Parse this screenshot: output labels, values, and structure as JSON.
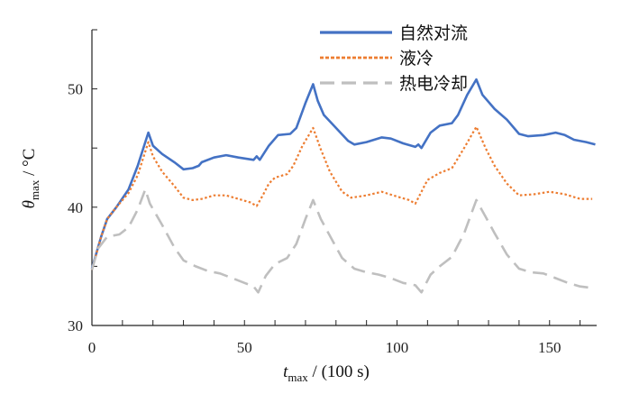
{
  "chart_data": {
    "type": "line",
    "xlabel": {
      "main": "t",
      "sub": "max",
      "rest": " / (100 s)"
    },
    "ylabel": {
      "main": "θ",
      "sub": "max",
      "rest": " / °C"
    },
    "xlim": [
      0,
      165
    ],
    "ylim": [
      30,
      55
    ],
    "xticks": [
      0,
      50,
      100,
      150
    ],
    "xminor_step": 10,
    "yticks": [
      30,
      40,
      50
    ],
    "yminor_step": 5,
    "grid": false,
    "legend_position": "top-right",
    "series": [
      {
        "name": "自然对流",
        "color": "#4472c4",
        "style": "solid",
        "x": [
          0,
          3,
          5,
          8,
          12,
          15,
          17.5,
          18.5,
          20,
          23,
          27,
          30,
          33,
          35,
          36,
          40,
          44,
          48,
          53,
          54,
          55,
          58,
          61,
          65,
          67,
          70,
          72.5,
          74,
          76,
          80,
          84,
          86,
          90,
          95,
          98,
          102,
          106,
          107,
          108,
          111,
          114,
          118,
          120,
          123,
          126,
          128,
          132,
          136,
          140,
          143,
          148,
          152,
          155,
          158,
          162,
          165
        ],
        "y": [
          34.8,
          37.5,
          39,
          40,
          41.5,
          43.5,
          45.5,
          46.3,
          45.2,
          44.5,
          43.8,
          43.2,
          43.3,
          43.5,
          43.8,
          44.2,
          44.4,
          44.2,
          44.0,
          44.3,
          44.0,
          45.2,
          46.1,
          46.2,
          46.7,
          48.8,
          50.4,
          49,
          47.8,
          46.7,
          45.6,
          45.3,
          45.5,
          45.9,
          45.8,
          45.4,
          45.1,
          45.3,
          45.0,
          46.3,
          46.9,
          47.1,
          47.8,
          49.5,
          50.8,
          49.5,
          48.3,
          47.4,
          46.2,
          46.0,
          46.1,
          46.3,
          46.1,
          45.7,
          45.5,
          45.3
        ]
      },
      {
        "name": "液冷",
        "color": "#ed7d31",
        "style": "dotted",
        "x": [
          0,
          3,
          5,
          8,
          12,
          15,
          17,
          18.5,
          20,
          23,
          27,
          30,
          33,
          36,
          40,
          44,
          48,
          52,
          54,
          56,
          58,
          60,
          64,
          66,
          69,
          72.5,
          75,
          78,
          82,
          85,
          90,
          95,
          100,
          104,
          106,
          108,
          110,
          114,
          118,
          122,
          126,
          129,
          132,
          136,
          140,
          145,
          150,
          155,
          160,
          164
        ],
        "y": [
          34.7,
          37.5,
          39,
          40,
          41.2,
          42.7,
          44.3,
          45.5,
          44.3,
          43,
          41.8,
          40.8,
          40.6,
          40.7,
          41.0,
          41.0,
          40.7,
          40.4,
          40.1,
          41,
          42,
          42.5,
          42.8,
          43.5,
          45.2,
          46.7,
          44.9,
          43.0,
          41.3,
          40.8,
          41.0,
          41.3,
          40.9,
          40.6,
          40.3,
          41.3,
          42.3,
          42.9,
          43.3,
          45.0,
          46.8,
          45,
          43.5,
          42,
          41.0,
          41.1,
          41.3,
          41.1,
          40.7,
          40.7
        ]
      },
      {
        "name": "热电冷却",
        "color": "#bfbfbf",
        "style": "dashed",
        "x": [
          0,
          2,
          5,
          9,
          12,
          15,
          17.5,
          19,
          23,
          27,
          30,
          34,
          38,
          42,
          46,
          50,
          53,
          54.5,
          57,
          60,
          64,
          67,
          70,
          72.5,
          75,
          79,
          82,
          86,
          90,
          94,
          98,
          102,
          106,
          108,
          111,
          114,
          118,
          122,
          126,
          129,
          132,
          136,
          140,
          144,
          148,
          152,
          156,
          160,
          163
        ],
        "y": [
          34.7,
          36.5,
          37.5,
          37.7,
          38.3,
          39.8,
          41.5,
          40.3,
          38.5,
          36.6,
          35.5,
          35.0,
          34.6,
          34.4,
          34.0,
          33.6,
          33.3,
          32.8,
          34.2,
          35.2,
          35.7,
          36.9,
          39,
          40.6,
          39.0,
          37.1,
          35.7,
          34.8,
          34.5,
          34.3,
          34.0,
          33.6,
          33.4,
          32.8,
          34.3,
          35.0,
          35.8,
          37.8,
          40.6,
          39.2,
          37.8,
          36,
          34.8,
          34.5,
          34.4,
          34.0,
          33.6,
          33.3,
          33.2
        ]
      }
    ]
  }
}
